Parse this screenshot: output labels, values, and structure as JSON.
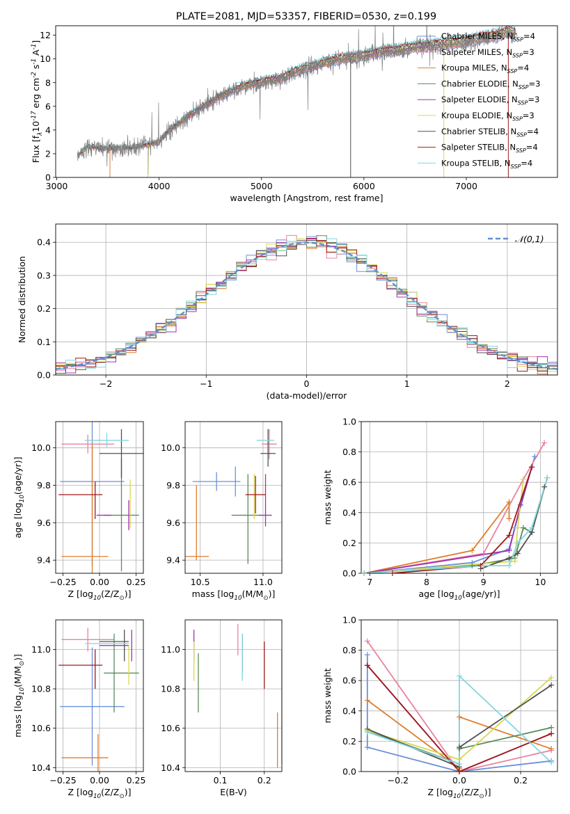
{
  "chart_data": [
    {
      "id": "spectrum",
      "type": "line",
      "title": "PLATE=2081, MJD=53357, FIBERID=0530, z=0.199",
      "xlabel": "wavelength [Angstrom, rest frame]",
      "ylabel": "Flux [f$_\\lambda$10$^{-17}$ erg cm$^{-2}$ s$^{-1}$ A$^{-1}$]",
      "xlim": [
        2990,
        7890
      ],
      "ylim": [
        0,
        12.8
      ],
      "xticks": [
        3000,
        4000,
        5000,
        6000,
        7000
      ],
      "yticks": [
        0,
        2,
        4,
        6,
        8,
        10,
        12
      ],
      "legend": "right",
      "data_curve": {
        "color": "#808080",
        "x": [
          3200,
          3300,
          3400,
          3500,
          3600,
          3700,
          3800,
          3900,
          4000,
          4100,
          4200,
          4300,
          4400,
          4500,
          4600,
          4700,
          4800,
          4900,
          5000,
          5100,
          5200,
          5300,
          5400,
          5500,
          5600,
          5700,
          5800,
          5900,
          6000,
          6100,
          6200,
          6300,
          6400,
          6500,
          6600,
          6700,
          6800,
          6900,
          7000,
          7100,
          7200,
          7300,
          7400,
          7500
        ],
        "y": [
          1.8,
          2.6,
          2.5,
          2.4,
          2.5,
          2.5,
          2.6,
          2.8,
          3.0,
          4.0,
          4.6,
          5.2,
          5.8,
          6.3,
          6.8,
          7.2,
          7.6,
          7.8,
          8.0,
          8.2,
          8.3,
          8.8,
          9.1,
          9.3,
          9.6,
          9.8,
          10.0,
          10.0,
          10.2,
          10.4,
          10.6,
          10.6,
          10.8,
          10.9,
          11.0,
          11.1,
          11.2,
          11.3,
          11.4,
          11.6,
          11.8,
          11.9,
          12.2,
          12.0
        ]
      },
      "legend_entries": [
        {
          "label": "Chabrier MILES, N$_{SSP}$=4",
          "color": "#6a8fd8"
        },
        {
          "label": "Salpeter MILES, N$_{SSP}$=3",
          "color": "#e8829e"
        },
        {
          "label": "Kroupa MILES, N$_{SSP}$=4",
          "color": "#e07c2c"
        },
        {
          "label": "Chabrier ELODIE, N$_{SSP}$=3",
          "color": "#5a8a5a"
        },
        {
          "label": "Salpeter ELODIE, N$_{SSP}$=3",
          "color": "#a030b0"
        },
        {
          "label": "Kroupa ELODIE, N$_{SSP}$=3",
          "color": "#d8d850"
        },
        {
          "label": "Chabrier STELIB, N$_{SSP}$=4",
          "color": "#505050"
        },
        {
          "label": "Salpeter STELIB, N$_{SSP}$=4",
          "color": "#a01818"
        },
        {
          "label": "Kroupa STELIB, N$_{SSP}$=4",
          "color": "#80d8e0"
        }
      ]
    },
    {
      "id": "residuals",
      "type": "line",
      "xlabel": "(data-model)/error",
      "ylabel": "Normed distribution",
      "xlim": [
        -2.5,
        2.5
      ],
      "ylim": [
        0,
        0.455
      ],
      "xticks": [
        -2,
        -1,
        0,
        1,
        2
      ],
      "yticks": [
        0.0,
        0.1,
        0.2,
        0.3,
        0.4
      ],
      "grid": true,
      "legend": "top-right",
      "gaussian_label": "$\\mathcal{N}(0,1)$",
      "gaussian_color": "#5f8fd0",
      "bin_width": 0.1
    },
    {
      "id": "age_vs_Z",
      "type": "scatter",
      "xlabel": "Z [log$_{10}$(Z/Z$_\\odot$)]",
      "ylabel": "age  [log$_{10}$(age/yr)]",
      "xlim": [
        -0.3,
        0.3
      ],
      "ylim": [
        9.33,
        10.14
      ],
      "xticks": [
        -0.25,
        0.0,
        0.25
      ],
      "yticks": [
        9.4,
        9.6,
        9.8,
        10.0
      ],
      "grid": true,
      "points": [
        {
          "x": -0.05,
          "xerr": 0.22,
          "y": 9.82,
          "yerr": 0.45,
          "color": "#6a8fd8"
        },
        {
          "x": -0.08,
          "xerr": 0.18,
          "y": 10.02,
          "yerr": 0.05,
          "color": "#e8829e"
        },
        {
          "x": -0.1,
          "xerr": 0.16,
          "y": 9.42,
          "yerr": 0.0,
          "color": "#e07c2c"
        },
        {
          "x": -0.05,
          "xerr": 0.0,
          "y": 9.42,
          "yerr": 0.6,
          "color": "#e07c2c"
        },
        {
          "x": 0.15,
          "xerr": 0.12,
          "y": 9.64,
          "yerr": 0.3,
          "color": "#5a8a5a"
        },
        {
          "x": 0.03,
          "xerr": 0.05,
          "y": 9.64,
          "yerr": 0.0,
          "color": "#a030b0"
        },
        {
          "x": 0.2,
          "xerr": 0.0,
          "y": 9.64,
          "yerr": 0.08,
          "color": "#a030b0"
        },
        {
          "x": 0.21,
          "xerr": 0.0,
          "y": 9.7,
          "yerr": 0.13,
          "color": "#d8d850"
        },
        {
          "x": 0.15,
          "xerr": 0.15,
          "y": 9.97,
          "yerr": 0.13,
          "color": "#505050"
        },
        {
          "x": -0.13,
          "xerr": 0.15,
          "y": 9.75,
          "yerr": 0.0,
          "color": "#a01818"
        },
        {
          "x": -0.03,
          "xerr": 0.0,
          "y": 9.72,
          "yerr": 0.1,
          "color": "#a01818"
        },
        {
          "x": 0.05,
          "xerr": 0.15,
          "y": 10.04,
          "yerr": 0.04,
          "color": "#80d8e0"
        }
      ]
    },
    {
      "id": "age_vs_mass",
      "type": "scatter",
      "xlabel": "mass [log$_{10}$(M/M$_\\odot$)]",
      "ylabel": "",
      "xlim": [
        10.38,
        11.15
      ],
      "ylim": [
        9.33,
        10.14
      ],
      "xticks": [
        10.5,
        11.0
      ],
      "yticks": [
        9.4,
        9.6,
        9.8,
        10.0
      ],
      "grid": true,
      "points": [
        {
          "x": 10.63,
          "xerr": 0.19,
          "y": 9.82,
          "yerr": 0.05,
          "color": "#6a8fd8"
        },
        {
          "x": 10.78,
          "xerr": 0.0,
          "y": 9.82,
          "yerr": 0.08,
          "color": "#6a8fd8"
        },
        {
          "x": 11.05,
          "xerr": 0.06,
          "y": 10.02,
          "yerr": 0.08,
          "color": "#e8829e"
        },
        {
          "x": 10.47,
          "xerr": 0.1,
          "y": 9.42,
          "yerr": 0.0,
          "color": "#e07c2c"
        },
        {
          "x": 10.47,
          "xerr": 0.0,
          "y": 9.6,
          "yerr": 0.2,
          "color": "#e07c2c"
        },
        {
          "x": 10.87,
          "xerr": 0.12,
          "y": 9.64,
          "yerr": 0.0,
          "color": "#5a8a5a"
        },
        {
          "x": 10.88,
          "xerr": 0.0,
          "y": 9.62,
          "yerr": 0.24,
          "color": "#5a8a5a"
        },
        {
          "x": 11.02,
          "xerr": 0.05,
          "y": 9.64,
          "yerr": 0.0,
          "color": "#a030b0"
        },
        {
          "x": 11.02,
          "xerr": 0.0,
          "y": 9.72,
          "yerr": 0.14,
          "color": "#a030b0"
        },
        {
          "x": 10.93,
          "xerr": 0.0,
          "y": 9.74,
          "yerr": 0.12,
          "color": "#d8d850"
        },
        {
          "x": 11.04,
          "xerr": 0.06,
          "y": 9.97,
          "yerr": 0.0,
          "color": "#505050"
        },
        {
          "x": 11.04,
          "xerr": 0.0,
          "y": 10.0,
          "yerr": 0.1,
          "color": "#505050"
        },
        {
          "x": 10.94,
          "xerr": 0.08,
          "y": 9.75,
          "yerr": 0.0,
          "color": "#a01818"
        },
        {
          "x": 10.94,
          "xerr": 0.0,
          "y": 9.75,
          "yerr": 0.1,
          "color": "#a01818"
        },
        {
          "x": 11.02,
          "xerr": 0.07,
          "y": 10.04,
          "yerr": 0.0,
          "color": "#80d8e0"
        }
      ]
    },
    {
      "id": "massweight_vs_age",
      "type": "line",
      "xlabel": "age  [log$_{10}$(age/yr)]",
      "ylabel": "mass weight",
      "xlim": [
        6.85,
        10.3
      ],
      "ylim": [
        0,
        1.0
      ],
      "xticks": [
        7,
        8,
        9,
        10
      ],
      "yticks": [
        0.0,
        0.2,
        0.4,
        0.6,
        0.8,
        1.0
      ],
      "grid": true,
      "series": [
        {
          "color": "#6a8fd8",
          "x": [
            6.9,
            8.8,
            9.45,
            9.55,
            9.9
          ],
          "y": [
            0.0,
            0.07,
            0.16,
            0.3,
            0.77
          ]
        },
        {
          "color": "#e8829e",
          "x": [
            6.9,
            9.0,
            9.7,
            10.07
          ],
          "y": [
            0.0,
            0.13,
            0.62,
            0.86
          ]
        },
        {
          "color": "#e07c2c",
          "x": [
            6.9,
            8.8,
            9.45,
            9.45
          ],
          "y": [
            0.0,
            0.15,
            0.47,
            0.36
          ]
        },
        {
          "color": "#5a8a5a",
          "x": [
            6.9,
            8.8,
            9.55,
            9.7,
            9.85,
            10.12
          ],
          "y": [
            0.0,
            0.05,
            0.1,
            0.3,
            0.27,
            0.63
          ]
        },
        {
          "color": "#a030b0",
          "x": [
            6.9,
            9.45,
            9.65,
            9.85
          ],
          "y": [
            0.0,
            0.15,
            0.45,
            0.7
          ]
        },
        {
          "color": "#d8d850",
          "x": [
            6.9,
            9.55,
            9.6,
            9.7
          ],
          "y": [
            0.0,
            0.08,
            0.3,
            0.62
          ]
        },
        {
          "color": "#505050",
          "x": [
            8.95,
            9.45,
            9.6,
            9.85,
            10.07
          ],
          "y": [
            0.03,
            0.1,
            0.13,
            0.27,
            0.57
          ]
        },
        {
          "color": "#a01818",
          "x": [
            7.4,
            8.95,
            9.45,
            9.85
          ],
          "y": [
            0.0,
            0.05,
            0.25,
            0.7
          ]
        },
        {
          "color": "#80d8e0",
          "x": [
            6.9,
            9.0,
            9.45,
            9.6,
            9.85,
            10.12
          ],
          "y": [
            0.0,
            0.05,
            0.05,
            0.2,
            0.3,
            0.63
          ]
        }
      ]
    },
    {
      "id": "mass_vs_Z",
      "type": "scatter",
      "xlabel": "Z [log$_{10}$(Z/Z$_\\odot$)]",
      "ylabel": "mass [log$_{10}$(M/M$_\\odot$)]",
      "xlim": [
        -0.3,
        0.3
      ],
      "ylim": [
        10.38,
        11.15
      ],
      "xticks": [
        -0.25,
        0.0,
        0.25
      ],
      "yticks": [
        10.4,
        10.6,
        10.8,
        11.0
      ],
      "grid": true,
      "points": [
        {
          "x": -0.05,
          "xerr": 0.22,
          "y": 10.71,
          "yerr": 0.3,
          "color": "#6a8fd8"
        },
        {
          "x": -0.08,
          "xerr": 0.18,
          "y": 11.05,
          "yerr": 0.06,
          "color": "#e8829e"
        },
        {
          "x": -0.1,
          "xerr": 0.16,
          "y": 10.45,
          "yerr": 0.0,
          "color": "#e07c2c"
        },
        {
          "x": -0.01,
          "xerr": 0.0,
          "y": 10.45,
          "yerr": 0.12,
          "color": "#e07c2c"
        },
        {
          "x": 0.15,
          "xerr": 0.12,
          "y": 10.88,
          "yerr": 0.0,
          "color": "#5a8a5a"
        },
        {
          "x": 0.1,
          "xerr": 0.0,
          "y": 10.88,
          "yerr": 0.2,
          "color": "#5a8a5a"
        },
        {
          "x": 0.1,
          "xerr": 0.1,
          "y": 11.02,
          "yerr": 0.0,
          "color": "#a030b0"
        },
        {
          "x": 0.22,
          "xerr": 0.0,
          "y": 11.02,
          "yerr": 0.08,
          "color": "#a030b0"
        },
        {
          "x": 0.2,
          "xerr": 0.0,
          "y": 10.92,
          "yerr": 0.1,
          "color": "#d8d850"
        },
        {
          "x": 0.1,
          "xerr": 0.1,
          "y": 11.04,
          "yerr": 0.0,
          "color": "#505050"
        },
        {
          "x": 0.17,
          "xerr": 0.0,
          "y": 11.02,
          "yerr": 0.08,
          "color": "#505050"
        },
        {
          "x": -0.13,
          "xerr": 0.15,
          "y": 10.92,
          "yerr": 0.0,
          "color": "#a01818"
        },
        {
          "x": -0.03,
          "xerr": 0.0,
          "y": 10.9,
          "yerr": 0.1,
          "color": "#a01818"
        },
        {
          "x": 0.05,
          "xerr": 0.15,
          "y": 11.03,
          "yerr": 0.0,
          "color": "#80d8e0"
        }
      ]
    },
    {
      "id": "mass_vs_ebv",
      "type": "scatter",
      "xlabel": "E(B-V)",
      "ylabel": "",
      "xlim": [
        0.02,
        0.24
      ],
      "ylim": [
        10.38,
        11.15
      ],
      "xticks": [
        0.1,
        0.2
      ],
      "yticks": [
        10.4,
        10.6,
        10.8,
        11.0
      ],
      "grid": true,
      "points": [
        {
          "x": 0.24,
          "xerr": 0.0,
          "y": 10.71,
          "yerr": 0.29,
          "color": "#6a8fd8"
        },
        {
          "x": 0.14,
          "xerr": 0.0,
          "y": 11.05,
          "yerr": 0.08,
          "color": "#e8829e"
        },
        {
          "x": 0.23,
          "xerr": 0.0,
          "y": 10.54,
          "yerr": 0.14,
          "color": "#e07c2c"
        },
        {
          "x": 0.05,
          "xerr": 0.0,
          "y": 10.83,
          "yerr": 0.15,
          "color": "#5a8a5a"
        },
        {
          "x": 0.04,
          "xerr": 0.0,
          "y": 11.02,
          "yerr": 0.08,
          "color": "#a030b0"
        },
        {
          "x": 0.04,
          "xerr": 0.0,
          "y": 10.94,
          "yerr": 0.1,
          "color": "#d8d850"
        },
        {
          "x": 0.15,
          "xerr": 0.0,
          "y": 10.98,
          "yerr": 0.1,
          "color": "#505050"
        },
        {
          "x": 0.2,
          "xerr": 0.0,
          "y": 10.92,
          "yerr": 0.12,
          "color": "#a01818"
        },
        {
          "x": 0.15,
          "xerr": 0.0,
          "y": 10.96,
          "yerr": 0.12,
          "color": "#80d8e0"
        }
      ]
    },
    {
      "id": "massweight_vs_Z",
      "type": "line",
      "xlabel": "Z [log$_{10}$(Z/Z$_\\odot$)]",
      "ylabel": "mass weight",
      "xlim": [
        -0.32,
        0.32
      ],
      "ylim": [
        0,
        1.0
      ],
      "xticks": [
        -0.2,
        0.0,
        0.2
      ],
      "yticks": [
        0.0,
        0.2,
        0.4,
        0.6,
        0.8,
        1.0
      ],
      "grid": true,
      "series": [
        {
          "color": "#6a8fd8",
          "x": [
            -0.3,
            -0.3,
            0.0,
            0.3
          ],
          "y": [
            0.77,
            0.16,
            0.0,
            0.07
          ]
        },
        {
          "color": "#e8829e",
          "x": [
            -0.3,
            0.0,
            0.3
          ],
          "y": [
            0.86,
            0.0,
            0.14
          ]
        },
        {
          "color": "#e07c2c",
          "x": [
            -0.3,
            0.0,
            0.0,
            0.3
          ],
          "y": [
            0.47,
            0.02,
            0.36,
            0.15
          ]
        },
        {
          "color": "#5a8a5a",
          "x": [
            -0.3,
            0.0,
            0.0,
            0.3
          ],
          "y": [
            0.27,
            0.05,
            0.15,
            0.29
          ]
        },
        {
          "color": "#a030b0",
          "x": [
            -0.3,
            0.0,
            0.3
          ],
          "y": [
            0.7,
            0.0,
            0.25
          ]
        },
        {
          "color": "#d8d850",
          "x": [
            -0.3,
            0.0,
            0.3
          ],
          "y": [
            0.27,
            0.08,
            0.62
          ]
        },
        {
          "color": "#505050",
          "x": [
            -0.3,
            0.0,
            0.0,
            0.3
          ],
          "y": [
            0.28,
            0.03,
            0.16,
            0.57
          ]
        },
        {
          "color": "#a01818",
          "x": [
            -0.3,
            0.0,
            0.3
          ],
          "y": [
            0.7,
            0.0,
            0.25
          ]
        },
        {
          "color": "#80d8e0",
          "x": [
            -0.3,
            0.0,
            0.0,
            0.3
          ],
          "y": [
            0.26,
            0.05,
            0.63,
            0.06
          ]
        }
      ]
    }
  ]
}
